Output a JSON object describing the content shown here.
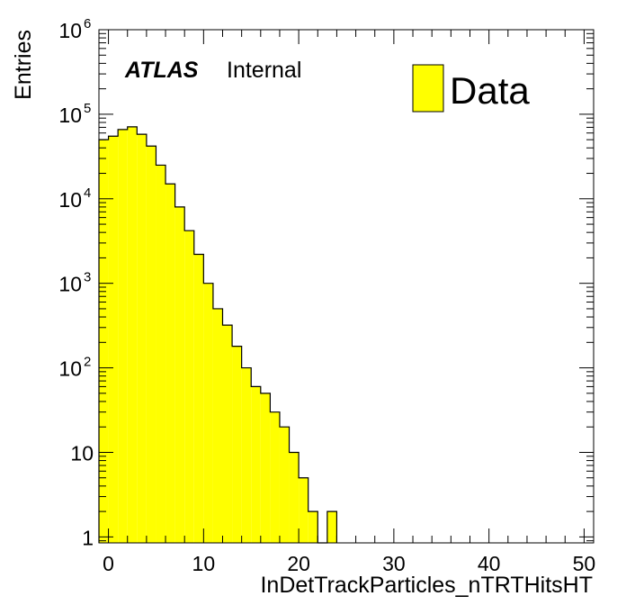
{
  "chart_data": {
    "type": "bar",
    "subtype": "histogram",
    "title": "",
    "xlabel": "InDetTrackParticles_nTRTHitsHT",
    "ylabel": "Entries",
    "xlim": [
      -1,
      51
    ],
    "ylim": [
      0.85,
      1000000
    ],
    "yscale": "log",
    "bin_width": 1,
    "x_ticks": [
      0,
      10,
      20,
      30,
      40,
      50
    ],
    "y_ticks": [
      {
        "value": 1,
        "base": "1",
        "exp": ""
      },
      {
        "value": 10,
        "base": "10",
        "exp": ""
      },
      {
        "value": 100,
        "base": "10",
        "exp": "2"
      },
      {
        "value": 1000,
        "base": "10",
        "exp": "3"
      },
      {
        "value": 10000,
        "base": "10",
        "exp": "4"
      },
      {
        "value": 100000,
        "base": "10",
        "exp": "5"
      },
      {
        "value": 1000000,
        "base": "10",
        "exp": "6"
      }
    ],
    "bins": [
      {
        "x": -1,
        "value": 50000
      },
      {
        "x": 0,
        "value": 55000
      },
      {
        "x": 1,
        "value": 66000
      },
      {
        "x": 2,
        "value": 71000
      },
      {
        "x": 3,
        "value": 58000
      },
      {
        "x": 4,
        "value": 42000
      },
      {
        "x": 5,
        "value": 25000
      },
      {
        "x": 6,
        "value": 15000
      },
      {
        "x": 7,
        "value": 8000
      },
      {
        "x": 8,
        "value": 4200
      },
      {
        "x": 9,
        "value": 2200
      },
      {
        "x": 10,
        "value": 1000
      },
      {
        "x": 11,
        "value": 500
      },
      {
        "x": 12,
        "value": 320
      },
      {
        "x": 13,
        "value": 180
      },
      {
        "x": 14,
        "value": 100
      },
      {
        "x": 15,
        "value": 60
      },
      {
        "x": 16,
        "value": 50
      },
      {
        "x": 17,
        "value": 30
      },
      {
        "x": 18,
        "value": 20
      },
      {
        "x": 19,
        "value": 10
      },
      {
        "x": 20,
        "value": 5
      },
      {
        "x": 21,
        "value": 2
      },
      {
        "x": 22,
        "value": 0
      },
      {
        "x": 23,
        "value": 2
      }
    ],
    "series": [
      {
        "name": "Data",
        "color": "#ffff00",
        "edge_color": "#000000"
      }
    ],
    "legend": {
      "placement": "top-right",
      "entries": [
        {
          "label": "Data",
          "color": "#ffff00"
        }
      ]
    },
    "annotations": {
      "atlas": "ATLAS",
      "status": "Internal"
    },
    "grid": false
  }
}
